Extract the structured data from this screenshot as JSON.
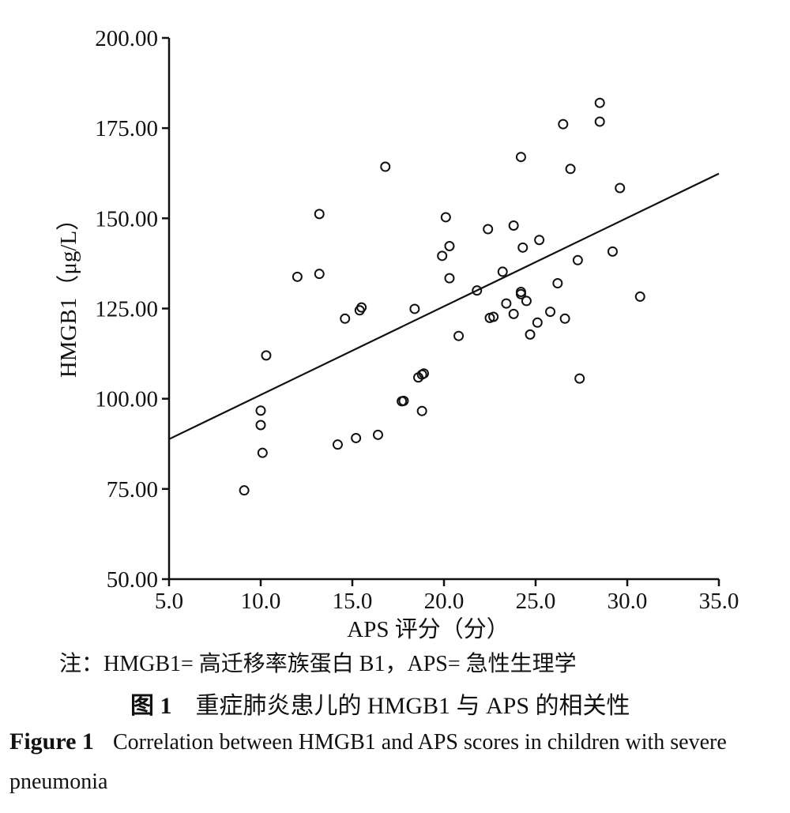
{
  "chart_data": {
    "type": "scatter",
    "title": "",
    "xlabel": "APS 评分（分）",
    "ylabel": "HMGB1（μg/L）",
    "xlim": [
      5.0,
      35.0
    ],
    "ylim": [
      50.0,
      200.0
    ],
    "x_ticks": [
      "5.0",
      "10.0",
      "15.0",
      "20.0",
      "25.0",
      "30.0",
      "35.0"
    ],
    "y_ticks": [
      "50.00",
      "75.00",
      "100.00",
      "125.00",
      "150.00",
      "175.00",
      "200.00"
    ],
    "grid": false,
    "legend": "none",
    "points": [
      [
        9.1,
        74.6
      ],
      [
        10.0,
        96.7
      ],
      [
        10.0,
        92.7
      ],
      [
        10.1,
        85.0
      ],
      [
        10.3,
        112.0
      ],
      [
        12.0,
        133.8
      ],
      [
        13.2,
        151.2
      ],
      [
        13.2,
        134.6
      ],
      [
        14.2,
        87.3
      ],
      [
        14.6,
        122.2
      ],
      [
        15.2,
        89.1
      ],
      [
        15.4,
        124.5
      ],
      [
        15.5,
        125.3
      ],
      [
        16.4,
        90.0
      ],
      [
        16.8,
        164.3
      ],
      [
        17.7,
        99.3
      ],
      [
        17.8,
        99.4
      ],
      [
        18.4,
        124.9
      ],
      [
        18.6,
        105.9
      ],
      [
        18.8,
        106.7
      ],
      [
        18.8,
        96.6
      ],
      [
        18.9,
        107.0
      ],
      [
        19.9,
        139.6
      ],
      [
        20.1,
        150.3
      ],
      [
        20.3,
        142.3
      ],
      [
        20.3,
        133.4
      ],
      [
        20.8,
        117.4
      ],
      [
        21.8,
        130.0
      ],
      [
        22.4,
        147.0
      ],
      [
        22.5,
        122.4
      ],
      [
        22.7,
        122.7
      ],
      [
        23.2,
        135.2
      ],
      [
        23.4,
        126.4
      ],
      [
        23.8,
        148.0
      ],
      [
        23.8,
        123.5
      ],
      [
        24.2,
        167.0
      ],
      [
        24.2,
        129.6
      ],
      [
        24.2,
        129.0
      ],
      [
        24.3,
        141.9
      ],
      [
        24.5,
        127.1
      ],
      [
        24.7,
        117.8
      ],
      [
        25.1,
        121.1
      ],
      [
        25.2,
        144.0
      ],
      [
        25.8,
        124.1
      ],
      [
        26.2,
        132.0
      ],
      [
        26.5,
        176.1
      ],
      [
        26.6,
        122.2
      ],
      [
        26.9,
        163.7
      ],
      [
        27.3,
        138.4
      ],
      [
        27.4,
        105.6
      ],
      [
        28.5,
        182.0
      ],
      [
        28.5,
        176.8
      ],
      [
        29.2,
        140.8
      ],
      [
        29.6,
        158.4
      ],
      [
        30.7,
        128.3
      ]
    ],
    "fit_line": {
      "x": [
        5.0,
        35.0
      ],
      "y": [
        88.8,
        162.4
      ]
    }
  },
  "captions": {
    "note": "注：HMGB1= 高迁移率族蛋白 B1，APS= 急性生理学",
    "figure_label_zh": "图 1",
    "figure_title_zh": "重症肺炎患儿的 HMGB1 与 APS 的相关性",
    "figure_label_en": "Figure 1",
    "figure_title_en": "Correlation between HMGB1 and APS scores in children with severe pneumonia"
  }
}
